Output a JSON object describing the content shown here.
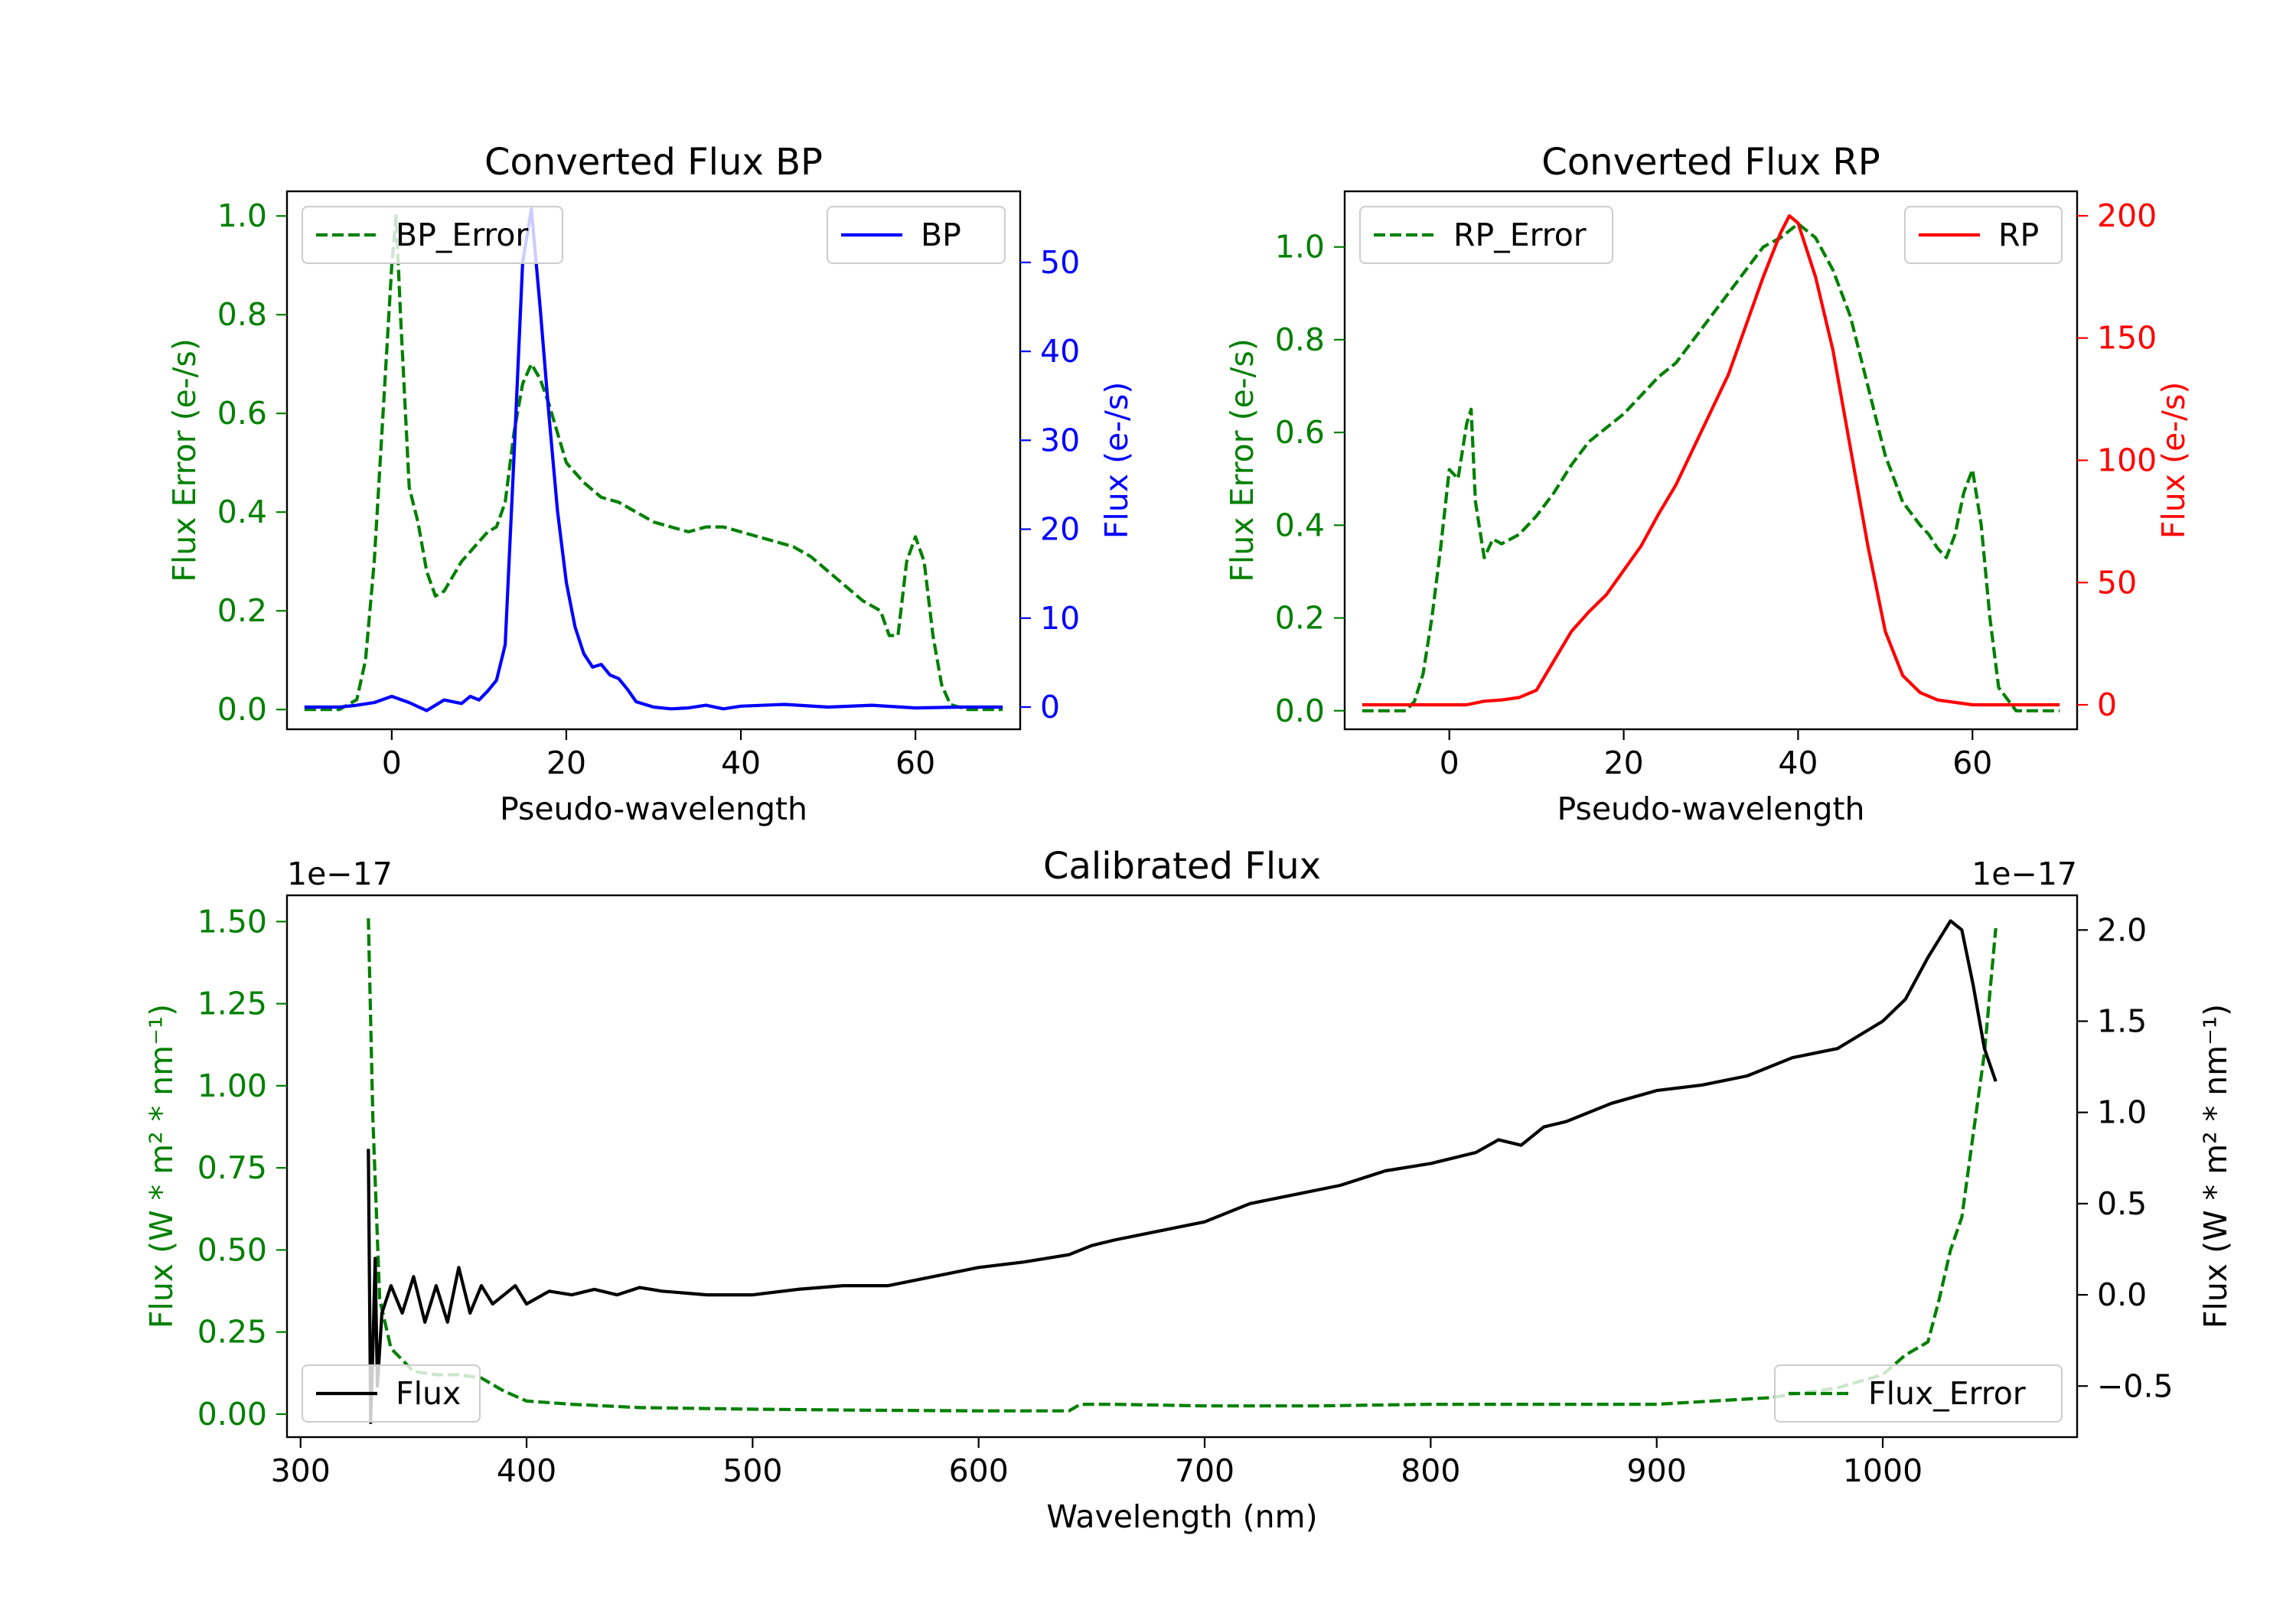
{
  "chart_data": [
    {
      "type": "line",
      "title": "Converted Flux BP",
      "xlabel": "Pseudo-wavelength",
      "xlim": [
        -12,
        72
      ],
      "xticks": [
        0,
        20,
        40,
        60
      ],
      "left_axis": {
        "label": "Flux Error (e-/s)",
        "color": "#008000",
        "ylim": [
          -0.04,
          1.05
        ],
        "ticks": [
          0.0,
          0.2,
          0.4,
          0.6,
          0.8,
          1.0
        ],
        "tick_labels": [
          "0.0",
          "0.2",
          "0.4",
          "0.6",
          "0.8",
          "1.0"
        ]
      },
      "right_axis": {
        "label": "Flux (e-/s)",
        "color": "#0000ff",
        "ylim": [
          -2.5,
          58
        ],
        "ticks": [
          0,
          10,
          20,
          30,
          40,
          50
        ],
        "tick_labels": [
          "0",
          "10",
          "20",
          "30",
          "40",
          "50"
        ]
      },
      "series": [
        {
          "name": "BP_Error",
          "axis": "left",
          "color": "#008000",
          "style": "dashed",
          "x": [
            -10,
            -6,
            -4,
            -3,
            -2,
            -1,
            0,
            0.5,
            1,
            2,
            3,
            4,
            5,
            6,
            7,
            8,
            9,
            10,
            11,
            12,
            13,
            14,
            15,
            16,
            17,
            18,
            19,
            20,
            22,
            24,
            26,
            28,
            30,
            32,
            34,
            36,
            38,
            40,
            42,
            44,
            46,
            48,
            50,
            52,
            54,
            56,
            57,
            58,
            59,
            60,
            61,
            62,
            63,
            64,
            66,
            70
          ],
          "values": [
            0,
            0,
            0.02,
            0.1,
            0.3,
            0.6,
            0.9,
            1.0,
            0.8,
            0.45,
            0.38,
            0.28,
            0.23,
            0.24,
            0.27,
            0.3,
            0.32,
            0.34,
            0.36,
            0.37,
            0.42,
            0.56,
            0.66,
            0.7,
            0.67,
            0.62,
            0.56,
            0.5,
            0.46,
            0.43,
            0.42,
            0.4,
            0.38,
            0.37,
            0.36,
            0.37,
            0.37,
            0.36,
            0.35,
            0.34,
            0.33,
            0.31,
            0.28,
            0.25,
            0.22,
            0.2,
            0.15,
            0.15,
            0.3,
            0.35,
            0.3,
            0.15,
            0.05,
            0.01,
            0,
            0
          ]
        },
        {
          "name": "BP",
          "axis": "right",
          "color": "#0000ff",
          "style": "solid",
          "x": [
            -10,
            -6,
            -4,
            -2,
            0,
            2,
            4,
            6,
            8,
            9,
            10,
            11,
            12,
            13,
            14,
            15,
            16,
            17,
            18,
            19,
            20,
            21,
            22,
            23,
            24,
            25,
            26,
            27,
            28,
            30,
            32,
            34,
            36,
            38,
            40,
            45,
            50,
            55,
            60,
            65,
            70
          ],
          "values": [
            0,
            0,
            0.2,
            0.5,
            1.2,
            0.5,
            -0.4,
            0.8,
            0.4,
            1.2,
            0.8,
            1.8,
            3,
            7,
            28,
            50,
            56,
            45,
            33,
            22,
            14,
            9,
            6,
            4.5,
            4.8,
            3.6,
            3.2,
            2,
            0.6,
            0,
            -0.2,
            -0.1,
            0.2,
            -0.2,
            0.1,
            0.3,
            0,
            0.2,
            -0.1,
            0,
            0
          ]
        }
      ],
      "legend": [
        {
          "label": "BP_Error",
          "placement": "top-left"
        },
        {
          "label": "BP",
          "placement": "top-right"
        }
      ]
    },
    {
      "type": "line",
      "title": "Converted Flux RP",
      "xlabel": "Pseudo-wavelength",
      "xlim": [
        -12,
        72
      ],
      "xticks": [
        0,
        20,
        40,
        60
      ],
      "left_axis": {
        "label": "Flux Error (e-/s)",
        "color": "#008000",
        "ylim": [
          -0.04,
          1.12
        ],
        "ticks": [
          0.0,
          0.2,
          0.4,
          0.6,
          0.8,
          1.0
        ],
        "tick_labels": [
          "0.0",
          "0.2",
          "0.4",
          "0.6",
          "0.8",
          "1.0"
        ]
      },
      "right_axis": {
        "label": "Flux (e-/s)",
        "color": "#ff0000",
        "ylim": [
          -10,
          210
        ],
        "ticks": [
          0,
          50,
          100,
          150,
          200
        ],
        "tick_labels": [
          "0",
          "50",
          "100",
          "150",
          "200"
        ]
      },
      "series": [
        {
          "name": "RP_Error",
          "axis": "left",
          "color": "#008000",
          "style": "dashed",
          "x": [
            -10,
            -5,
            -4,
            -3,
            -2,
            -1,
            0,
            1,
            2,
            2.5,
            3,
            4,
            5,
            6,
            8,
            10,
            12,
            14,
            16,
            18,
            20,
            22,
            24,
            26,
            28,
            30,
            32,
            34,
            36,
            38,
            40,
            42,
            44,
            46,
            48,
            50,
            52,
            54,
            55,
            56,
            57,
            58,
            59,
            60,
            61,
            62,
            63,
            65,
            70
          ],
          "values": [
            0,
            0,
            0.02,
            0.08,
            0.2,
            0.35,
            0.52,
            0.5,
            0.62,
            0.65,
            0.45,
            0.33,
            0.37,
            0.36,
            0.38,
            0.42,
            0.47,
            0.53,
            0.58,
            0.61,
            0.64,
            0.68,
            0.72,
            0.75,
            0.8,
            0.85,
            0.9,
            0.95,
            1.0,
            1.02,
            1.05,
            1.02,
            0.95,
            0.85,
            0.7,
            0.55,
            0.45,
            0.4,
            0.38,
            0.35,
            0.33,
            0.38,
            0.47,
            0.52,
            0.4,
            0.2,
            0.05,
            0,
            0
          ]
        },
        {
          "name": "RP",
          "axis": "right",
          "color": "#ff0000",
          "style": "solid",
          "x": [
            -10,
            -5,
            0,
            2,
            4,
            6,
            8,
            10,
            12,
            14,
            16,
            18,
            20,
            22,
            24,
            26,
            28,
            30,
            32,
            34,
            36,
            38,
            39,
            40,
            42,
            44,
            46,
            48,
            50,
            52,
            54,
            56,
            60,
            65,
            70
          ],
          "values": [
            0,
            0,
            0,
            0,
            1.5,
            2,
            3,
            6,
            18,
            30,
            38,
            45,
            55,
            65,
            78,
            90,
            105,
            120,
            135,
            155,
            175,
            193,
            200,
            197,
            175,
            145,
            105,
            65,
            30,
            12,
            5,
            2,
            0,
            0,
            0
          ]
        }
      ],
      "legend": [
        {
          "label": "RP_Error",
          "placement": "top-left"
        },
        {
          "label": "RP",
          "placement": "top-right"
        }
      ]
    },
    {
      "type": "line",
      "title": "Calibrated Flux",
      "xlabel": "Wavelength (nm)",
      "xlim": [
        294,
        1086
      ],
      "xticks": [
        300,
        400,
        500,
        600,
        700,
        800,
        900,
        1000
      ],
      "left_axis": {
        "label": "Flux (W * m² * nm⁻¹)",
        "color": "#008000",
        "offset_text": "1e−17",
        "ylim": [
          -0.07,
          1.58
        ],
        "ticks": [
          0.0,
          0.25,
          0.5,
          0.75,
          1.0,
          1.25,
          1.5
        ],
        "tick_labels": [
          "0.00",
          "0.25",
          "0.50",
          "0.75",
          "1.00",
          "1.25",
          "1.50"
        ]
      },
      "right_axis": {
        "label": "Flux (W * m² * nm⁻¹)",
        "color": "#000000",
        "offset_text": "1e−17",
        "ylim": [
          -0.78,
          2.19
        ],
        "ticks": [
          -0.5,
          0.0,
          0.5,
          1.0,
          1.5,
          2.0
        ],
        "tick_labels": [
          "−0.5",
          "0.0",
          "0.5",
          "1.0",
          "1.5",
          "2.0"
        ]
      },
      "series": [
        {
          "name": "Flux_Error",
          "axis": "left",
          "color": "#008000",
          "style": "dashed",
          "x": [
            330,
            332,
            335,
            340,
            350,
            360,
            370,
            380,
            390,
            400,
            420,
            450,
            500,
            550,
            600,
            630,
            640,
            645,
            660,
            700,
            750,
            800,
            850,
            900,
            950,
            980,
            1000,
            1010,
            1020,
            1025,
            1030,
            1035,
            1040,
            1045,
            1050
          ],
          "values": [
            1.51,
            0.9,
            0.35,
            0.2,
            0.13,
            0.12,
            0.12,
            0.11,
            0.07,
            0.04,
            0.03,
            0.02,
            0.015,
            0.012,
            0.01,
            0.01,
            0.01,
            0.03,
            0.03,
            0.025,
            0.025,
            0.03,
            0.03,
            0.03,
            0.05,
            0.08,
            0.12,
            0.18,
            0.22,
            0.35,
            0.5,
            0.6,
            0.85,
            1.1,
            1.48
          ]
        },
        {
          "name": "Flux",
          "axis": "right",
          "color": "#000000",
          "style": "solid",
          "x": [
            330,
            331,
            332,
            333,
            334,
            336,
            340,
            345,
            350,
            355,
            360,
            365,
            370,
            375,
            380,
            385,
            390,
            395,
            400,
            410,
            420,
            430,
            440,
            450,
            460,
            480,
            500,
            520,
            540,
            560,
            580,
            600,
            620,
            640,
            650,
            660,
            680,
            700,
            720,
            740,
            760,
            780,
            800,
            820,
            830,
            840,
            850,
            860,
            880,
            900,
            920,
            940,
            960,
            980,
            1000,
            1010,
            1020,
            1030,
            1035,
            1040,
            1045,
            1050
          ],
          "values": [
            0.8,
            -0.7,
            -0.3,
            0.2,
            -0.5,
            -0.1,
            0.05,
            -0.1,
            0.1,
            -0.15,
            0.05,
            -0.15,
            0.15,
            -0.1,
            0.05,
            -0.05,
            0.0,
            0.05,
            -0.05,
            0.02,
            0.0,
            0.03,
            0.0,
            0.04,
            0.02,
            0.0,
            0.0,
            0.03,
            0.05,
            0.05,
            0.1,
            0.15,
            0.18,
            0.22,
            0.27,
            0.3,
            0.35,
            0.4,
            0.5,
            0.55,
            0.6,
            0.68,
            0.72,
            0.78,
            0.85,
            0.82,
            0.92,
            0.95,
            1.05,
            1.12,
            1.15,
            1.2,
            1.3,
            1.35,
            1.5,
            1.62,
            1.85,
            2.05,
            2.0,
            1.7,
            1.35,
            1.17
          ]
        }
      ],
      "legend": [
        {
          "label": "Flux",
          "placement": "bottom-left"
        },
        {
          "label": "Flux_Error",
          "placement": "bottom-right"
        }
      ]
    }
  ]
}
